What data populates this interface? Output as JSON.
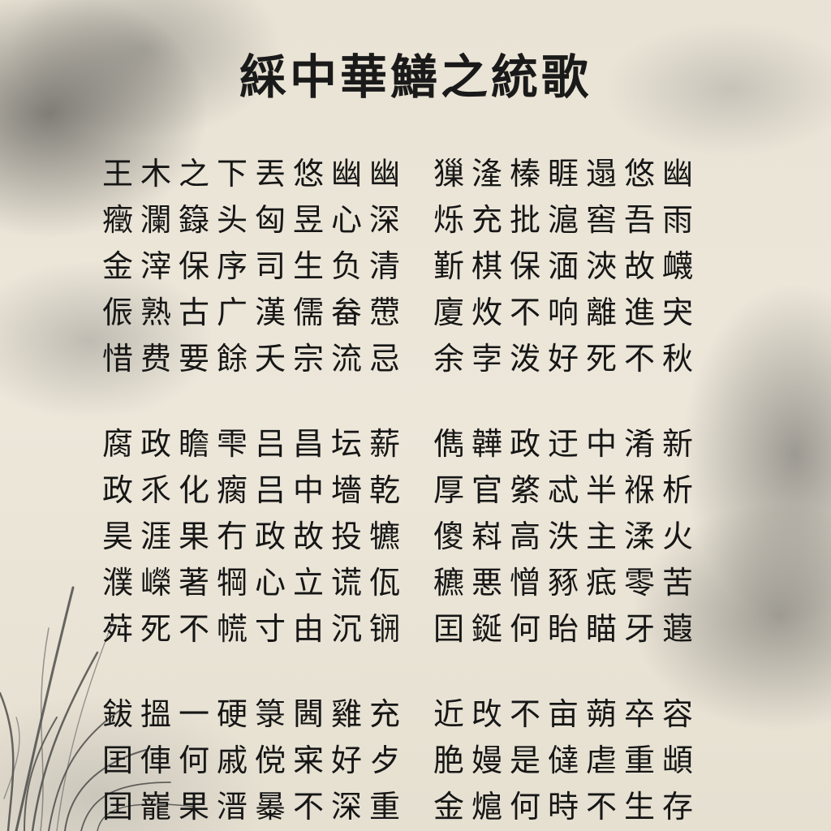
{
  "title": "綵中華鱔之統歌",
  "stanzas": [
    {
      "left": [
        "王木之下丟悠幽幽",
        "癥瀾籙头匈昱心深",
        "金滓保序司生负清",
        "侲熟古广漢儒畚慸",
        "惜费要餘夭宗流忌"
      ],
      "right": [
        "㺐湰榛睚遢悠幽",
        "烁充批滬窖吾雨",
        "斳棋保湎浹故衊",
        "廈炇不响離進宊",
        "余孛泼好死不秋"
      ]
    },
    {
      "left": [
        "腐政瞻雫吕昌坛薪",
        "政乑化瘸吕中墻乾",
        "昊涯果冇政故投犥",
        "濮嶸著犅心立谎佤",
        "荈死不㡛寸由沉锎"
      ],
      "right": [
        "儁韡政迂中淆新",
        "厚官綮忒半褓析",
        "傻嵙高泆主渘火",
        "穮悪憎豩疷零苦",
        "囯鋋何眙瞄牙蕸"
      ]
    },
    {
      "left": [
        "鈸搵一硬箓閪雞充",
        "囯俥何戚傥宷好歺",
        "囯巃果溍㬥不深重"
      ],
      "right": [
        "近攺不亩蒴卒容",
        "脃嫚是㒓虐重䪼",
        "金熩何時不生存"
      ]
    }
  ]
}
